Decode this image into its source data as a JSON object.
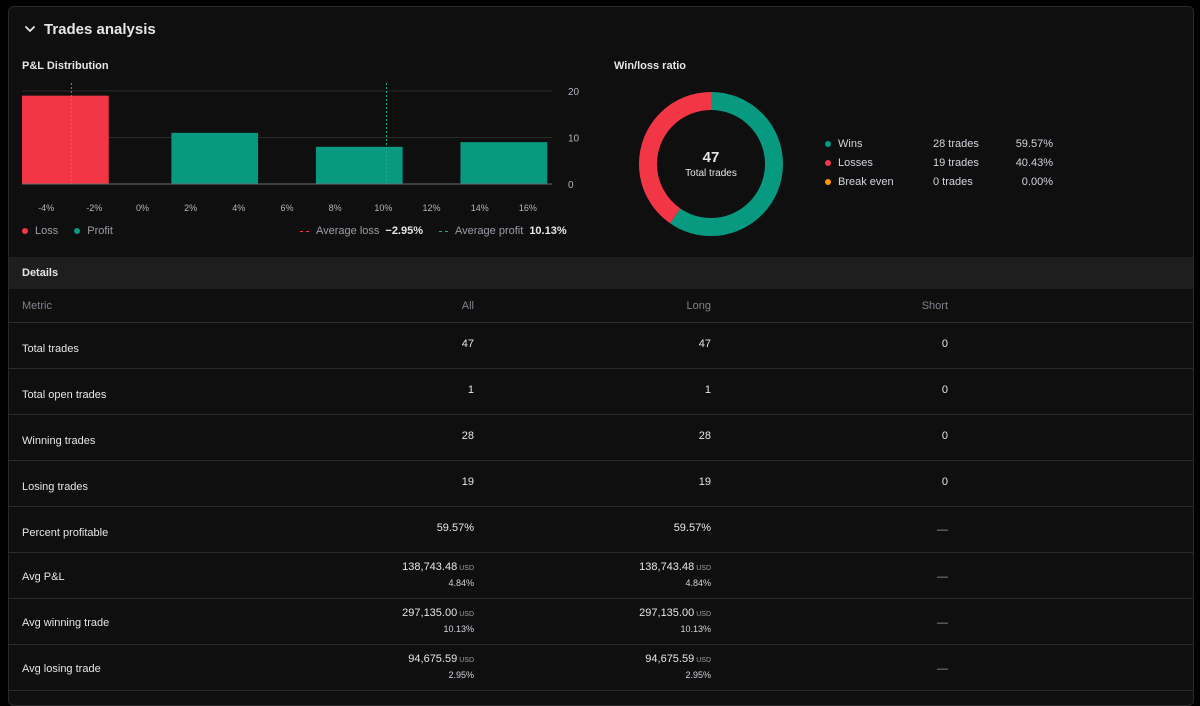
{
  "header": {
    "title": "Trades analysis"
  },
  "pnl": {
    "title": "P&L Distribution",
    "legend": {
      "loss_label": "Loss",
      "profit_label": "Profit",
      "avg_loss_label": "Average loss",
      "avg_loss_value": "−2.95%",
      "avg_profit_label": "Average profit",
      "avg_profit_value": "10.13%"
    },
    "colors": {
      "loss": "#f23645",
      "profit": "#089981",
      "break_even": "#ff9800"
    }
  },
  "chart_data": {
    "type": "bar",
    "title": "P&L Distribution",
    "x_tick_labels": [
      "-4%",
      "-2%",
      "0%",
      "2%",
      "4%",
      "6%",
      "8%",
      "10%",
      "12%",
      "14%",
      "16%"
    ],
    "x_ticks": [
      -4,
      -2,
      0,
      2,
      4,
      6,
      8,
      10,
      12,
      14,
      16
    ],
    "xlim": [
      -5,
      17
    ],
    "y_tick_labels": [
      "20",
      "10",
      "0"
    ],
    "y_ticks": [
      20,
      10,
      0
    ],
    "ylim": [
      0,
      20
    ],
    "bars": [
      {
        "from": -5,
        "to": -1.4,
        "value": 19,
        "kind": "loss"
      },
      {
        "from": 1.2,
        "to": 4.8,
        "value": 11,
        "kind": "profit"
      },
      {
        "from": 7.2,
        "to": 10.8,
        "value": 8,
        "kind": "profit"
      },
      {
        "from": 13.2,
        "to": 16.8,
        "value": 9,
        "kind": "profit"
      }
    ],
    "avg_loss_line": -2.95,
    "avg_profit_line": 10.13
  },
  "winloss": {
    "title": "Win/loss ratio",
    "total": "47",
    "total_label": "Total trades",
    "rows": [
      {
        "name": "Wins",
        "count": "28 trades",
        "pct": "59.57%",
        "color": "#089981",
        "fraction": 0.5957
      },
      {
        "name": "Losses",
        "count": "19 trades",
        "pct": "40.43%",
        "color": "#f23645",
        "fraction": 0.4043
      },
      {
        "name": "Break even",
        "count": "0 trades",
        "pct": "0.00%",
        "color": "#ff9800",
        "fraction": 0
      }
    ]
  },
  "details": {
    "title": "Details",
    "columns": {
      "metric": "Metric",
      "all": "All",
      "long": "Long",
      "short": "Short"
    },
    "rows": [
      {
        "metric": "Total trades",
        "all": "47",
        "long": "47",
        "short": "0"
      },
      {
        "metric": "Total open trades",
        "all": "1",
        "long": "1",
        "short": "0"
      },
      {
        "metric": "Winning trades",
        "all": "28",
        "long": "28",
        "short": "0"
      },
      {
        "metric": "Losing trades",
        "all": "19",
        "long": "19",
        "short": "0"
      },
      {
        "metric": "Percent profitable",
        "all": "59.57%",
        "long": "59.57%",
        "short": "—"
      },
      {
        "metric": "Avg P&L",
        "all": "138,743.48",
        "all_sub": "4.84%",
        "long": "138,743.48",
        "long_sub": "4.84%",
        "short": "—",
        "currency": "USD"
      },
      {
        "metric": "Avg winning trade",
        "all": "297,135.00",
        "all_sub": "10.13%",
        "long": "297,135.00",
        "long_sub": "10.13%",
        "short": "—",
        "currency": "USD"
      },
      {
        "metric": "Avg losing trade",
        "all": "94,675.59",
        "all_sub": "2.95%",
        "long": "94,675.59",
        "long_sub": "2.95%",
        "short": "—",
        "currency": "USD"
      }
    ]
  }
}
